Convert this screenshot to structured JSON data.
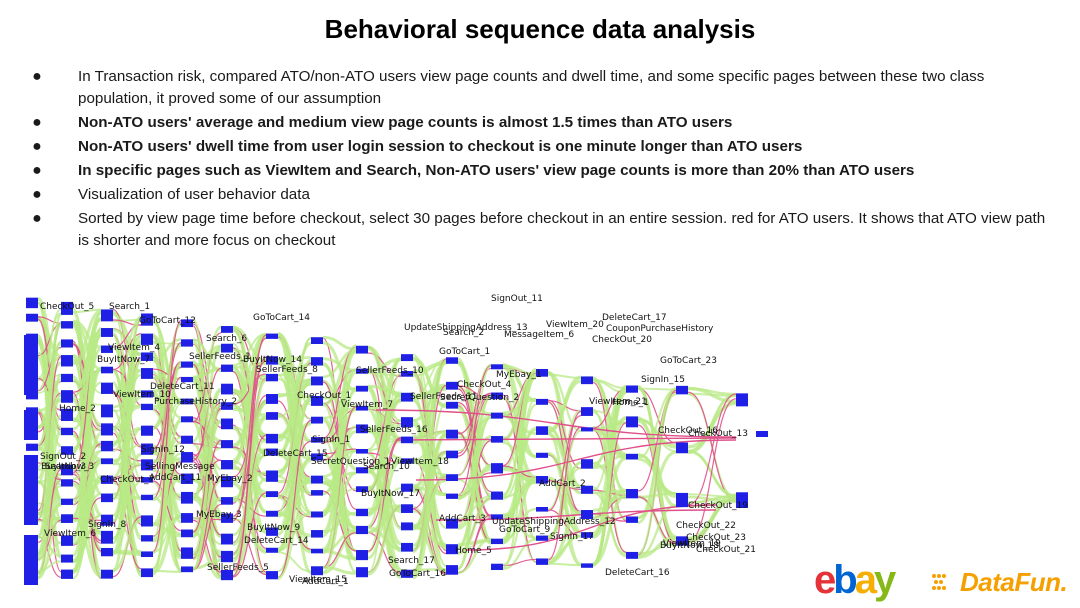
{
  "slide": {
    "title": "Behavioral sequence data analysis"
  },
  "bullets": [
    {
      "text": "In Transaction risk, compared ATO/non-ATO users view page counts and dwell time, and some specific pages between these two class population, it proved some of our assumption",
      "bold": false
    },
    {
      "text": "Non-ATO users' average and medium view page counts is almost 1.5 times than ATO users",
      "bold": true
    },
    {
      "text": "Non-ATO users' dwell time from user login session to checkout is one minute longer than ATO users",
      "bold": true
    },
    {
      "text": "In specific pages such as ViewItem and Search, Non-ATO users' view page counts is more than 20% than ATO users",
      "bold": true
    },
    {
      "text": "Visualization of user behavior data",
      "bold": false
    },
    {
      "text": "Sorted by view page time before checkout, select 30 pages before checkout in an entire session. red for ATO users. It shows that ATO view path is shorter and more focus on checkout",
      "bold": false
    }
  ],
  "bullet_glyph": "●",
  "sankey": {
    "node_color": "#1f1fe6",
    "link_color_non_ato": "#b8e986",
    "link_color_ato": "#e0508a",
    "labels": [
      "SignOut_2",
      "Search_3",
      "Home_2",
      "BuyItNow_3",
      "CheckOut_5",
      "ViewItem_6",
      "ViewItem_4",
      "SignIn_8",
      "Search_1",
      "CheckOut_7",
      "BuyItNow_7",
      "ViewItem_10",
      "DeleteCart_11",
      "AddCart_11",
      "GoToCart_12",
      "SignIn_12",
      "PurchaseHistory_2",
      "SellingMessage",
      "MyEbay_2",
      "MyEbay_3",
      "SellerFeeds_1",
      "SellerFeeds_5",
      "Search_6",
      "SellerFeeds_8",
      "BuyItNow_9",
      "DeleteCart_14",
      "GoToCart_14",
      "DeleteCart_15",
      "BuyItNow_14",
      "ViewItem_15",
      "CheckOut_13",
      "SignIn_1",
      "SecretQuestion_1",
      "CheckOut_1",
      "AddCart_1",
      "SellerFeeds_10",
      "SellerFeeds_16",
      "ViewItem_7",
      "Search_10",
      "BuyItNow_17",
      "GoToCart_16",
      "Search_17",
      "SellerFeeds_11",
      "UpdateShippingAddress_13",
      "ViewItem_18",
      "CheckOut_19",
      "AddCart_3",
      "Search_2",
      "Home_5",
      "CheckOut_4",
      "SecretQuestion_2",
      "GoToCart_1",
      "MyEbay_1",
      "MessageItem_6",
      "GoToCart_9",
      "SignOut_11",
      "UpdateShippingAddress_12",
      "ViewItem_20",
      "SignIn_17",
      "CheckOut_21",
      "CheckOut_22",
      "CheckOut_23",
      "AddCart_2",
      "Home_1",
      "CouponPurchaseHistory",
      "DeleteCart_17",
      "DeleteCart_16",
      "CheckOut_20",
      "ViewItem_21",
      "GoToCart_23",
      "SignIn_15",
      "BuyItNow_18",
      "CheckOut_16",
      "ViewItem_19"
    ]
  },
  "logos": {
    "ebay_letters": [
      "e",
      "b",
      "a",
      "y"
    ],
    "ebay_colors": [
      "#e53238",
      "#0064d2",
      "#f5af02",
      "#86b817"
    ],
    "datafun_text": "DataFun."
  }
}
